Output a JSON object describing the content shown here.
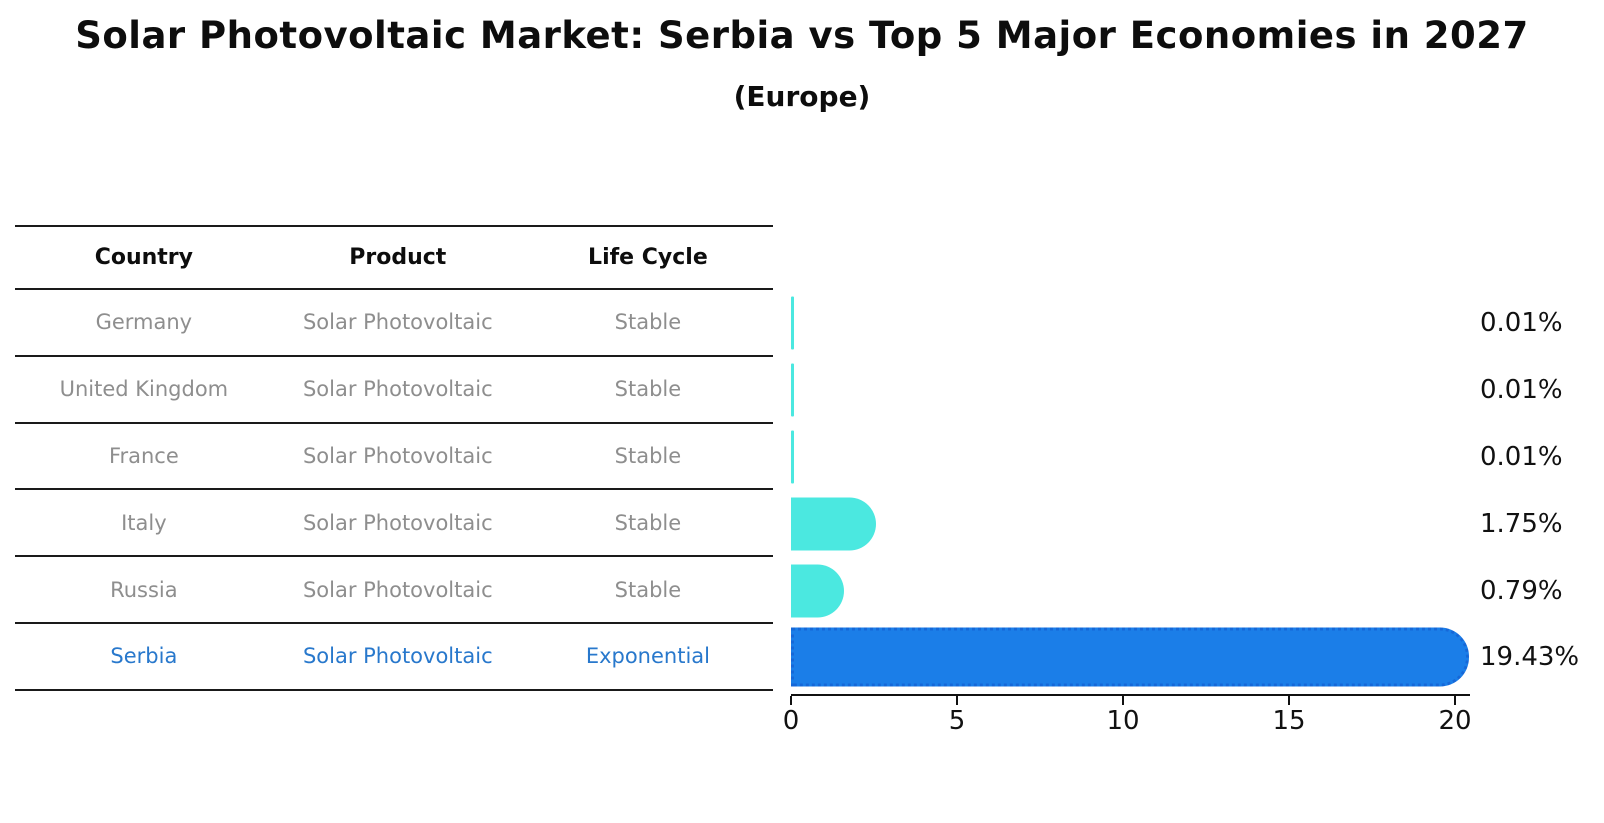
{
  "chart_data": {
    "type": "bar",
    "orientation": "horizontal",
    "title": "Solar Photovoltaic Market: Serbia vs Top 5 Major Economies in 2027",
    "subtitle": "(Europe)",
    "categories": [
      "Germany",
      "United Kingdom",
      "France",
      "Italy",
      "Russia",
      "Serbia"
    ],
    "values": [
      0.01,
      0.01,
      0.01,
      1.75,
      0.79,
      19.43
    ],
    "value_labels": [
      "0.01%",
      "0.01%",
      "0.01%",
      "1.75%",
      "0.79%",
      "19.43%"
    ],
    "xlabel": "",
    "ylabel": "",
    "xlim": [
      0,
      20
    ],
    "x_ticks": [
      0,
      5,
      10,
      15,
      20
    ],
    "grid": "off",
    "legend": "none",
    "highlight_index": 5,
    "colors": {
      "bar_default": "#4be8e0",
      "bar_highlight": "#1b7ee8",
      "bar_highlight_border": "#1668d8",
      "value_label_text": "#111111",
      "axis": "#111111"
    }
  },
  "table": {
    "headers": [
      "Country",
      "Product",
      "Life Cycle"
    ],
    "rows": [
      {
        "country": "Germany",
        "product": "Solar Photovoltaic",
        "life_cycle": "Stable",
        "highlight": false
      },
      {
        "country": "United Kingdom",
        "product": "Solar Photovoltaic",
        "life_cycle": "Stable",
        "highlight": false
      },
      {
        "country": "France",
        "product": "Solar Photovoltaic",
        "life_cycle": "Stable",
        "highlight": false
      },
      {
        "country": "Italy",
        "product": "Solar Photovoltaic",
        "life_cycle": "Stable",
        "highlight": false
      },
      {
        "country": "Russia",
        "product": "Solar Photovoltaic",
        "life_cycle": "Stable",
        "highlight": false
      },
      {
        "country": "Serbia",
        "product": "Solar Photovoltaic",
        "life_cycle": "Exponential",
        "highlight": true
      }
    ],
    "colors": {
      "header_text": "#0d0d0d",
      "row_text": "#8e8e8e",
      "highlight_text": "#2878cc",
      "rule": "#1a1a1a"
    }
  }
}
